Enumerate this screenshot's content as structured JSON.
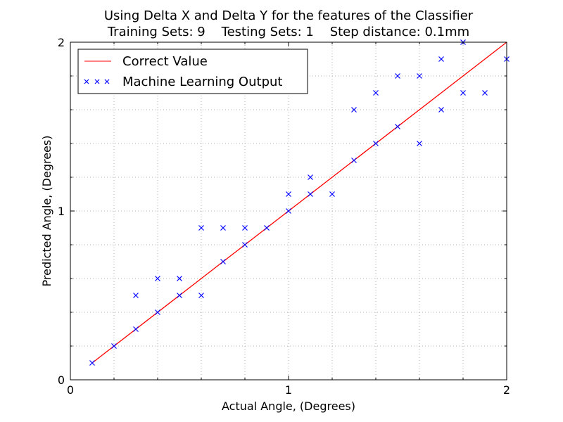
{
  "chart_data": {
    "type": "scatter",
    "title": "Using Delta X and Delta Y for the features of the Classifier",
    "subtitle": "Training Sets: 9    Testing Sets: 1    Step distance: 0.1mm",
    "xlabel": "Actual Angle, (Degrees)",
    "ylabel": "Predicted Angle, (Degrees)",
    "xlim": [
      0,
      2
    ],
    "ylim": [
      0,
      2
    ],
    "xticks": [
      0,
      1,
      2
    ],
    "yticks": [
      0,
      1,
      2
    ],
    "x_tick_labels": [
      "0",
      "1",
      "2"
    ],
    "y_tick_labels": [
      "0",
      "1",
      "2"
    ],
    "grid": "dotted, minor every 0.2",
    "legend_position": "top-left",
    "series": [
      {
        "name": "Correct Value",
        "kind": "line",
        "color": "#ff0000",
        "x": [
          0.1,
          2.0
        ],
        "y": [
          0.1,
          2.0
        ]
      },
      {
        "name": "Machine Learning Output",
        "kind": "scatter",
        "marker": "x",
        "color": "#0000ff",
        "x": [
          0.1,
          0.2,
          0.3,
          0.3,
          0.4,
          0.4,
          0.5,
          0.5,
          0.6,
          0.6,
          0.7,
          0.7,
          0.8,
          0.8,
          0.9,
          1.0,
          1.0,
          1.1,
          1.1,
          1.2,
          1.3,
          1.3,
          1.4,
          1.4,
          1.5,
          1.5,
          1.6,
          1.6,
          1.7,
          1.7,
          1.8,
          1.8,
          1.9,
          2.0
        ],
        "y": [
          0.1,
          0.2,
          0.3,
          0.5,
          0.4,
          0.6,
          0.5,
          0.6,
          0.5,
          0.9,
          0.7,
          0.9,
          0.8,
          0.9,
          0.9,
          1.0,
          1.1,
          1.1,
          1.2,
          1.1,
          1.3,
          1.6,
          1.4,
          1.7,
          1.5,
          1.8,
          1.4,
          1.8,
          1.6,
          1.9,
          1.7,
          2.0,
          1.7,
          1.9
        ]
      }
    ]
  }
}
